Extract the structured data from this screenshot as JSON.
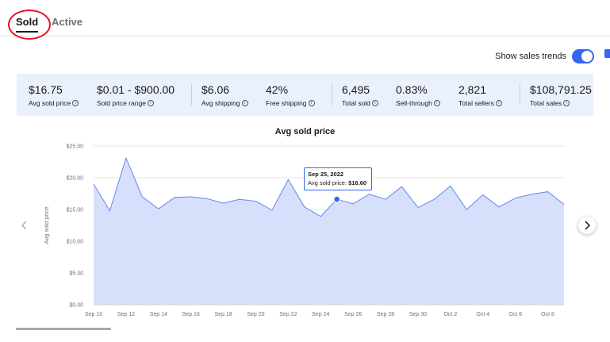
{
  "tabs": [
    {
      "label": "Sold",
      "selected": true
    },
    {
      "label": "Active",
      "selected": false
    }
  ],
  "trend_toggle": {
    "label": "Show sales trends",
    "on": true
  },
  "stats": [
    {
      "value": "$16.75",
      "label": "Avg sold price"
    },
    {
      "value": "$0.01 - $900.00",
      "label": "Sold price range"
    },
    {
      "value": "$6.06",
      "label": "Avg shipping"
    },
    {
      "value": "42%",
      "label": "Free shipping"
    },
    {
      "value": "6,495",
      "label": "Total sold"
    },
    {
      "value": "0.83%",
      "label": "Sell-through"
    },
    {
      "value": "2,821",
      "label": "Total sellers"
    },
    {
      "value": "$108,791.25",
      "label": "Total sales"
    }
  ],
  "tooltip": {
    "date": "Sep 25, 2022",
    "label": "Avg sold price:",
    "value": "$16.60"
  },
  "colors": {
    "accent": "#3665f3",
    "area_fill": "#d6e0fa",
    "line": "#6f8ef0",
    "annotation": "#e0141e"
  },
  "chart_data": {
    "type": "area",
    "title": "Avg sold price",
    "ylabel": "Avg sold price",
    "xlabel": "",
    "ylim": [
      0,
      25
    ],
    "yticks": [
      "$0.00",
      "$5.00",
      "$10.00",
      "$15.00",
      "$20.00",
      "$25.00"
    ],
    "x_tick_labels": [
      "Sep 10",
      "Sep 12",
      "Sep 14",
      "Sep 16",
      "Sep 18",
      "Sep 20",
      "Sep 22",
      "Sep 24",
      "Sep 26",
      "Sep 28",
      "Sep 30",
      "Oct 2",
      "Oct 4",
      "Oct 6",
      "Oct 8"
    ],
    "x": [
      "Sep 10",
      "Sep 11",
      "Sep 12",
      "Sep 13",
      "Sep 14",
      "Sep 15",
      "Sep 16",
      "Sep 17",
      "Sep 18",
      "Sep 19",
      "Sep 20",
      "Sep 21",
      "Sep 22",
      "Sep 23",
      "Sep 24",
      "Sep 25",
      "Sep 26",
      "Sep 27",
      "Sep 28",
      "Sep 29",
      "Sep 30",
      "Oct 1",
      "Oct 2",
      "Oct 3",
      "Oct 4",
      "Oct 5",
      "Oct 6",
      "Oct 7",
      "Oct 8",
      "Oct 9"
    ],
    "values": [
      19.0,
      14.8,
      23.1,
      17.0,
      15.1,
      16.9,
      17.0,
      16.7,
      16.0,
      16.6,
      16.3,
      14.9,
      19.7,
      15.4,
      13.9,
      16.6,
      15.9,
      17.4,
      16.6,
      18.6,
      15.3,
      16.6,
      18.7,
      15.0,
      17.3,
      15.4,
      16.8,
      17.4,
      17.8,
      15.8
    ],
    "highlight_index": 15,
    "grid": true
  }
}
